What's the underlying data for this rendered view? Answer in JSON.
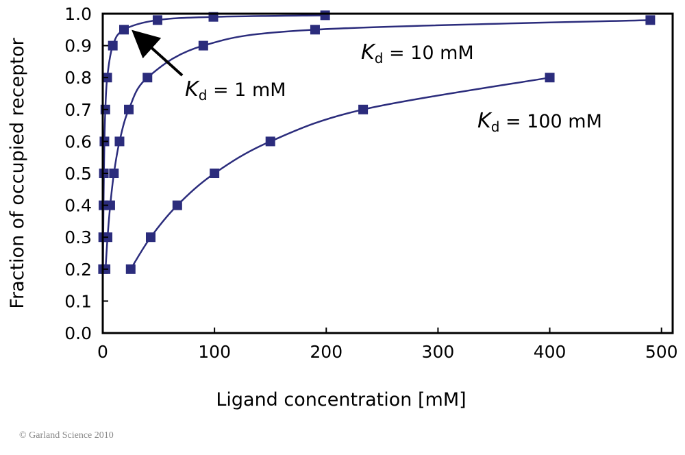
{
  "chart_data": {
    "type": "line",
    "xlabel": "Ligand concentration [mM]",
    "ylabel": "Fraction of occupied receptor",
    "xlim": [
      0,
      510
    ],
    "ylim": [
      0,
      1.0
    ],
    "x_ticks": [
      "0",
      "100",
      "200",
      "300",
      "400",
      "500"
    ],
    "y_ticks": [
      "0.0",
      "0.1",
      "0.2",
      "0.3",
      "0.4",
      "0.5",
      "0.6",
      "0.7",
      "0.8",
      "0.9",
      "1.0"
    ],
    "grid": false,
    "marker": "square",
    "color": "#2b2c7c",
    "series": [
      {
        "name": "Kd = 1 mM",
        "x": [
          0.25,
          0.43,
          0.67,
          1,
          1.5,
          2.33,
          4,
          9,
          19,
          49,
          99,
          199
        ],
        "y": [
          0.2,
          0.3,
          0.4,
          0.5,
          0.6,
          0.7,
          0.8,
          0.9,
          0.95,
          0.98,
          0.99,
          0.995
        ]
      },
      {
        "name": "Kd = 10 mM",
        "x": [
          2.5,
          4.3,
          6.7,
          10,
          15,
          23.3,
          40,
          90,
          190,
          490
        ],
        "y": [
          0.2,
          0.3,
          0.4,
          0.5,
          0.6,
          0.7,
          0.8,
          0.9,
          0.95,
          0.98
        ]
      },
      {
        "name": "Kd = 100 mM",
        "x": [
          25,
          42.9,
          66.7,
          100,
          150,
          233,
          400
        ],
        "y": [
          0.2,
          0.3,
          0.4,
          0.5,
          0.6,
          0.7,
          0.8
        ]
      }
    ],
    "annotations": [
      {
        "k": "K",
        "sub": "d",
        "rest": " = 1 mM",
        "arrow": true
      },
      {
        "k": "K",
        "sub": "d",
        "rest": " = 10 mM"
      },
      {
        "k": "K",
        "sub": "d",
        "rest": " = 100 mM"
      }
    ]
  },
  "copyright": "© Garland Science 2010"
}
